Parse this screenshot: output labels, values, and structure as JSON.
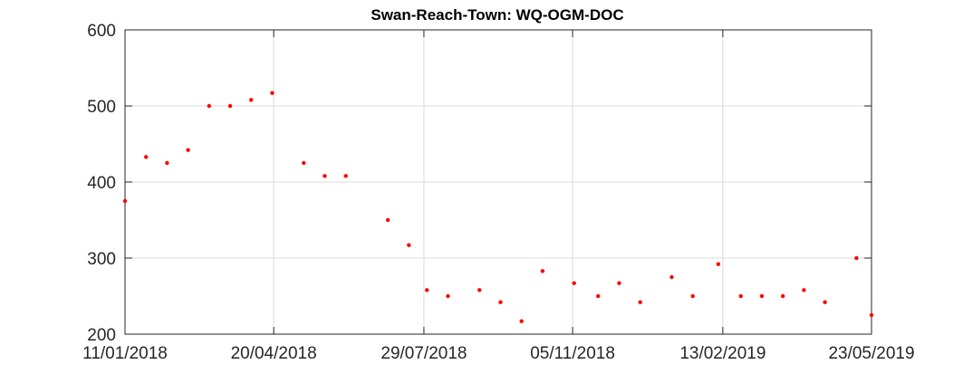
{
  "chart_data": {
    "type": "scatter",
    "title": "Swan-Reach-Town: WQ-OGM-DOC",
    "xlabel": "",
    "ylabel": "",
    "x_ticks": [
      "11/01/2018",
      "20/04/2018",
      "29/07/2018",
      "05/11/2018",
      "13/02/2019",
      "23/05/2019"
    ],
    "xlim": [
      "11/01/2018",
      "23/05/2019"
    ],
    "ylim": [
      200,
      600
    ],
    "y_ticks": [
      200,
      300,
      400,
      500,
      600
    ],
    "grid": true,
    "marker_color": "#ff0000",
    "series": [
      {
        "points": [
          {
            "x": "11/01/2018",
            "y": 375
          },
          {
            "x": "25/01/2018",
            "y": 433
          },
          {
            "x": "08/02/2018",
            "y": 425
          },
          {
            "x": "22/02/2018",
            "y": 442
          },
          {
            "x": "08/03/2018",
            "y": 500
          },
          {
            "x": "22/03/2018",
            "y": 500
          },
          {
            "x": "05/04/2018",
            "y": 508
          },
          {
            "x": "19/04/2018",
            "y": 517
          },
          {
            "x": "10/05/2018",
            "y": 425
          },
          {
            "x": "24/05/2018",
            "y": 408
          },
          {
            "x": "07/06/2018",
            "y": 408
          },
          {
            "x": "05/07/2018",
            "y": 350
          },
          {
            "x": "19/07/2018",
            "y": 317
          },
          {
            "x": "31/07/2018",
            "y": 258
          },
          {
            "x": "14/08/2018",
            "y": 250
          },
          {
            "x": "04/09/2018",
            "y": 258
          },
          {
            "x": "18/09/2018",
            "y": 242
          },
          {
            "x": "02/10/2018",
            "y": 217
          },
          {
            "x": "16/10/2018",
            "y": 283
          },
          {
            "x": "06/11/2018",
            "y": 267
          },
          {
            "x": "22/11/2018",
            "y": 250
          },
          {
            "x": "06/12/2018",
            "y": 267
          },
          {
            "x": "20/12/2018",
            "y": 242
          },
          {
            "x": "10/01/2019",
            "y": 275
          },
          {
            "x": "24/01/2019",
            "y": 250
          },
          {
            "x": "10/02/2019",
            "y": 292
          },
          {
            "x": "25/02/2019",
            "y": 250
          },
          {
            "x": "11/03/2019",
            "y": 250
          },
          {
            "x": "25/03/2019",
            "y": 250
          },
          {
            "x": "08/04/2019",
            "y": 258
          },
          {
            "x": "22/04/2019",
            "y": 242
          },
          {
            "x": "13/05/2019",
            "y": 300
          },
          {
            "x": "23/05/2019",
            "y": 225
          }
        ]
      }
    ]
  }
}
